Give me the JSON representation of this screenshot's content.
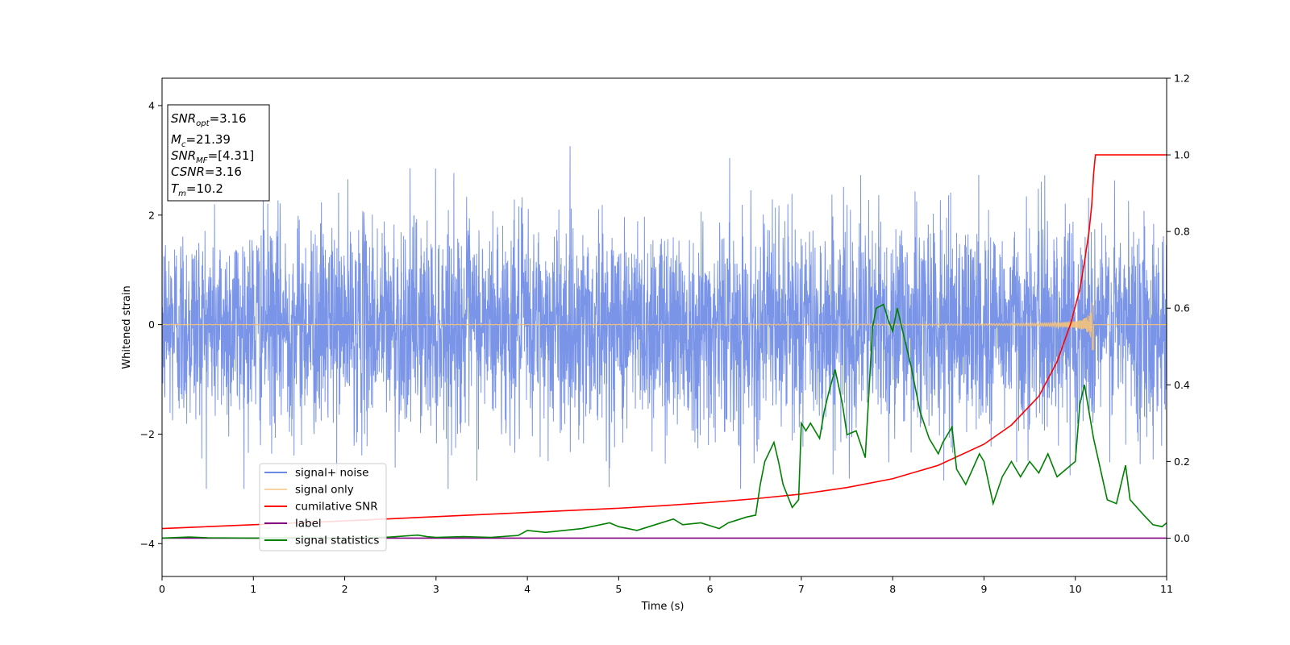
{
  "chart_data": {
    "type": "line",
    "xlabel": "Time (s)",
    "ylabel": "Whitened strain",
    "xlim": [
      0,
      11
    ],
    "ylim_left": [
      -4.6,
      4.5
    ],
    "ylim_right": [
      -0.1,
      1.2
    ],
    "x_ticks": [
      "0",
      "1",
      "2",
      "3",
      "4",
      "5",
      "6",
      "7",
      "8",
      "9",
      "10",
      "11"
    ],
    "y_left_ticks": [
      "4",
      "2",
      "0",
      "−2",
      "−4"
    ],
    "y_right_ticks": [
      "1.2",
      "1.0",
      "0.8",
      "0.6",
      "0.4",
      "0.2",
      "0.0"
    ],
    "grid": false,
    "legend_position": "lower-left",
    "info_box": {
      "snr_opt": "=3.16",
      "mc": "=21.39",
      "snr_mf": "=[4.31]",
      "csnr": "=3.16",
      "tm": "=10.2"
    },
    "series": [
      {
        "name": "signal+ noise",
        "color": "#6c8ae4",
        "axis": "left",
        "description": "whitened noisy strain, approx. within [-3.0, 3.6]",
        "envelope": {
          "low": -3.0,
          "high": 3.6
        }
      },
      {
        "name": "signal only",
        "color": "#f5c27a",
        "axis": "left",
        "chirp": {
          "t_merge": 10.2,
          "max_amplitude": 0.7
        }
      },
      {
        "name": "cumilative SNR",
        "color": "#ff0000",
        "axis": "right",
        "x": [
          0,
          1,
          2,
          3,
          4,
          5,
          5.5,
          6,
          6.5,
          7,
          7.5,
          8,
          8.5,
          9,
          9.3,
          9.6,
          9.8,
          9.95,
          10.05,
          10.1,
          10.15,
          10.18,
          10.2,
          10.22,
          11
        ],
        "y": [
          0.025,
          0.035,
          0.045,
          0.056,
          0.067,
          0.078,
          0.085,
          0.093,
          0.103,
          0.115,
          0.132,
          0.155,
          0.19,
          0.245,
          0.295,
          0.37,
          0.46,
          0.56,
          0.65,
          0.72,
          0.8,
          0.87,
          0.95,
          1.0,
          1.0
        ]
      },
      {
        "name": "label",
        "color": "#800080",
        "axis": "right",
        "x": [
          0,
          11
        ],
        "y": [
          0,
          0
        ]
      },
      {
        "name": "signal statistics",
        "color": "#008000",
        "axis": "right",
        "x": [
          0,
          0.3,
          0.5,
          1.0,
          1.5,
          2.0,
          2.5,
          2.8,
          2.9,
          3.0,
          3.3,
          3.6,
          3.9,
          4.0,
          4.2,
          4.4,
          4.6,
          4.9,
          5.0,
          5.2,
          5.4,
          5.6,
          5.7,
          5.9,
          6.1,
          6.2,
          6.4,
          6.5,
          6.55,
          6.6,
          6.7,
          6.75,
          6.8,
          6.9,
          6.97,
          7.0,
          7.05,
          7.1,
          7.2,
          7.25,
          7.3,
          7.37,
          7.45,
          7.5,
          7.6,
          7.7,
          7.78,
          7.82,
          7.9,
          7.95,
          8.0,
          8.05,
          8.1,
          8.2,
          8.3,
          8.4,
          8.5,
          8.55,
          8.6,
          8.65,
          8.7,
          8.8,
          8.95,
          9.0,
          9.1,
          9.2,
          9.3,
          9.4,
          9.5,
          9.6,
          9.7,
          9.8,
          9.9,
          10.0,
          10.05,
          10.1,
          10.2,
          10.35,
          10.45,
          10.55,
          10.6,
          10.75,
          10.85,
          10.95,
          11.0
        ],
        "y": [
          0.0,
          0.003,
          0.001,
          0.0,
          0.001,
          0.0,
          0.003,
          0.008,
          0.004,
          0.002,
          0.004,
          0.002,
          0.007,
          0.02,
          0.015,
          0.02,
          0.025,
          0.04,
          0.03,
          0.02,
          0.035,
          0.05,
          0.035,
          0.04,
          0.025,
          0.04,
          0.055,
          0.06,
          0.14,
          0.2,
          0.25,
          0.2,
          0.14,
          0.08,
          0.1,
          0.3,
          0.28,
          0.3,
          0.26,
          0.33,
          0.38,
          0.44,
          0.35,
          0.27,
          0.28,
          0.21,
          0.55,
          0.6,
          0.61,
          0.57,
          0.54,
          0.6,
          0.55,
          0.45,
          0.33,
          0.26,
          0.22,
          0.25,
          0.27,
          0.29,
          0.18,
          0.14,
          0.22,
          0.2,
          0.09,
          0.16,
          0.2,
          0.16,
          0.2,
          0.17,
          0.22,
          0.16,
          0.18,
          0.2,
          0.35,
          0.4,
          0.26,
          0.1,
          0.09,
          0.19,
          0.1,
          0.06,
          0.035,
          0.03,
          0.04
        ]
      }
    ]
  }
}
